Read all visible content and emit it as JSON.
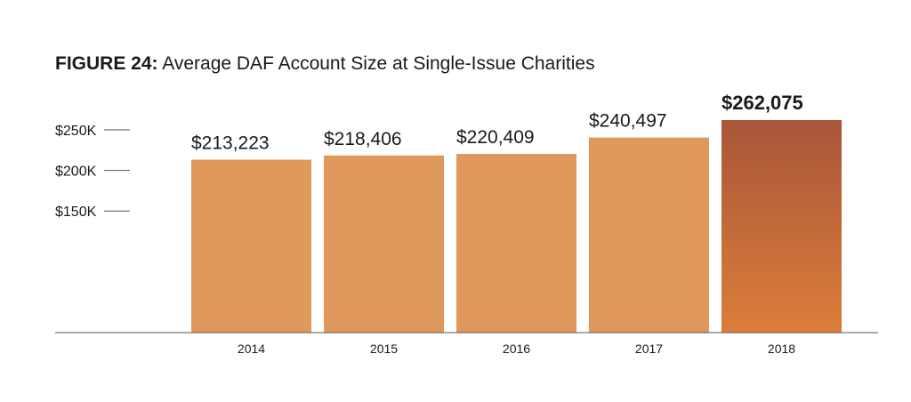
{
  "figure": {
    "label": "FIGURE 24:",
    "title": "Average DAF Account Size at Single-Issue Charities"
  },
  "colors": {
    "bar": "#E0995D",
    "highlight_top": "#A9553A",
    "highlight_bottom": "#DB7E3A",
    "axis": "#555555",
    "text": "#1a1a1a"
  },
  "chart_data": {
    "type": "bar",
    "title": "Average DAF Account Size at Single-Issue Charities",
    "categories": [
      "2014",
      "2015",
      "2016",
      "2017",
      "2018"
    ],
    "values": [
      213223,
      218406,
      220409,
      240497,
      262075
    ],
    "data_labels": [
      "$213,223",
      "$218,406",
      "$220,409",
      "$240,497",
      "$262,075"
    ],
    "highlight_index": 4,
    "y_ticks": [
      150000,
      200000,
      250000
    ],
    "y_tick_labels": [
      "$150K",
      "$200K",
      "$250K"
    ],
    "xlabel": "",
    "ylabel": "",
    "grid": false
  }
}
